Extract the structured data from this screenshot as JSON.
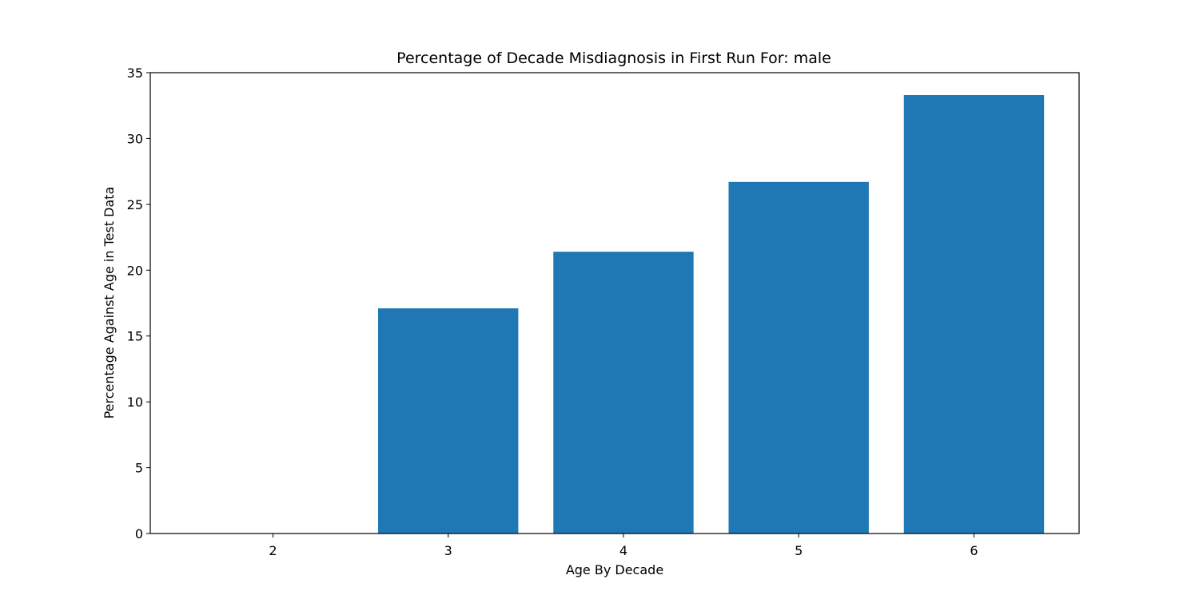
{
  "chart_data": {
    "type": "bar",
    "title": "Percentage of Decade Misdiagnosis in First Run For: male",
    "xlabel": "Age By Decade",
    "ylabel": "Percentage Against Age in Test Data",
    "categories": [
      "2",
      "3",
      "4",
      "5",
      "6"
    ],
    "x": [
      2,
      3,
      4,
      5,
      6
    ],
    "values": [
      0,
      17.1,
      21.4,
      26.7,
      33.3
    ],
    "ylim": [
      0,
      35
    ],
    "xlim": [
      1.3,
      6.6
    ],
    "yticks": [
      0,
      5,
      10,
      15,
      20,
      25,
      30,
      35
    ],
    "xticks": [
      2,
      3,
      4,
      5,
      6
    ],
    "bar_width": 0.8,
    "bar_color": "#1f77b4",
    "grid": false,
    "legend": "none"
  }
}
